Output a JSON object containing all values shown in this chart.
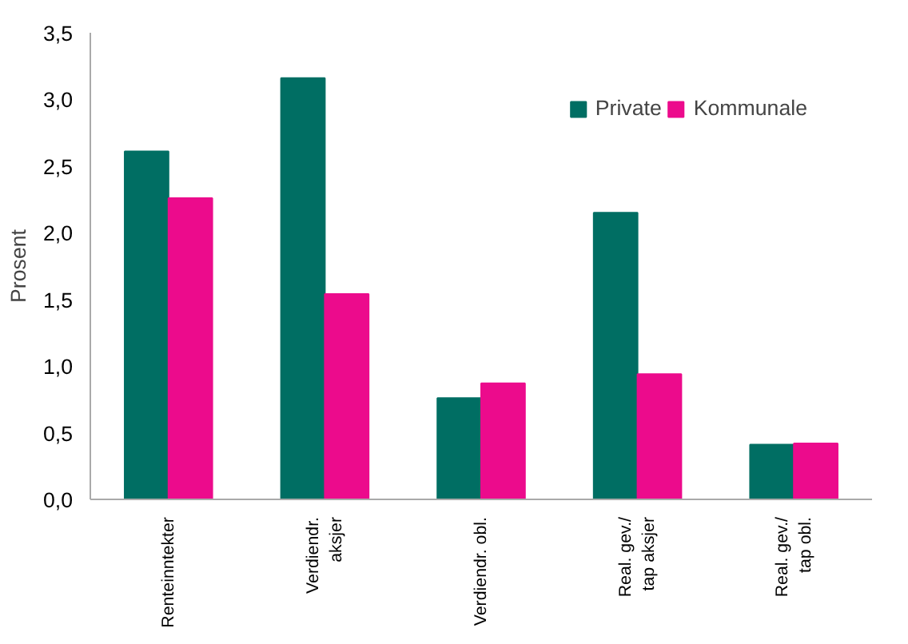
{
  "chart_data": {
    "type": "bar",
    "ylabel": "Prosent",
    "categories": [
      "Renteinntekter",
      "Verdiendr.\naksjer",
      "Verdiendr. obl.",
      "Real. gev./\ntap aksjer",
      "Real. gev./\ntap obl."
    ],
    "series": [
      {
        "name": "Private",
        "color": "#006e63",
        "values": [
          2.61,
          3.16,
          0.76,
          2.15,
          0.41
        ]
      },
      {
        "name": "Kommunale",
        "color": "#ec0b8c",
        "values": [
          2.26,
          1.54,
          0.87,
          0.94,
          0.42
        ]
      }
    ],
    "ylim": [
      0,
      3.5
    ],
    "yticks": [
      {
        "value": 0,
        "label": "0,0"
      },
      {
        "value": 0.5,
        "label": "0,5"
      },
      {
        "value": 1,
        "label": "1,0"
      },
      {
        "value": 1.5,
        "label": "1,5"
      },
      {
        "value": 2,
        "label": "2,0"
      },
      {
        "value": 2.5,
        "label": "2,5"
      },
      {
        "value": 3,
        "label": "3,0"
      },
      {
        "value": 3.5,
        "label": "3,5"
      }
    ],
    "grid": false,
    "legend": "top right"
  }
}
